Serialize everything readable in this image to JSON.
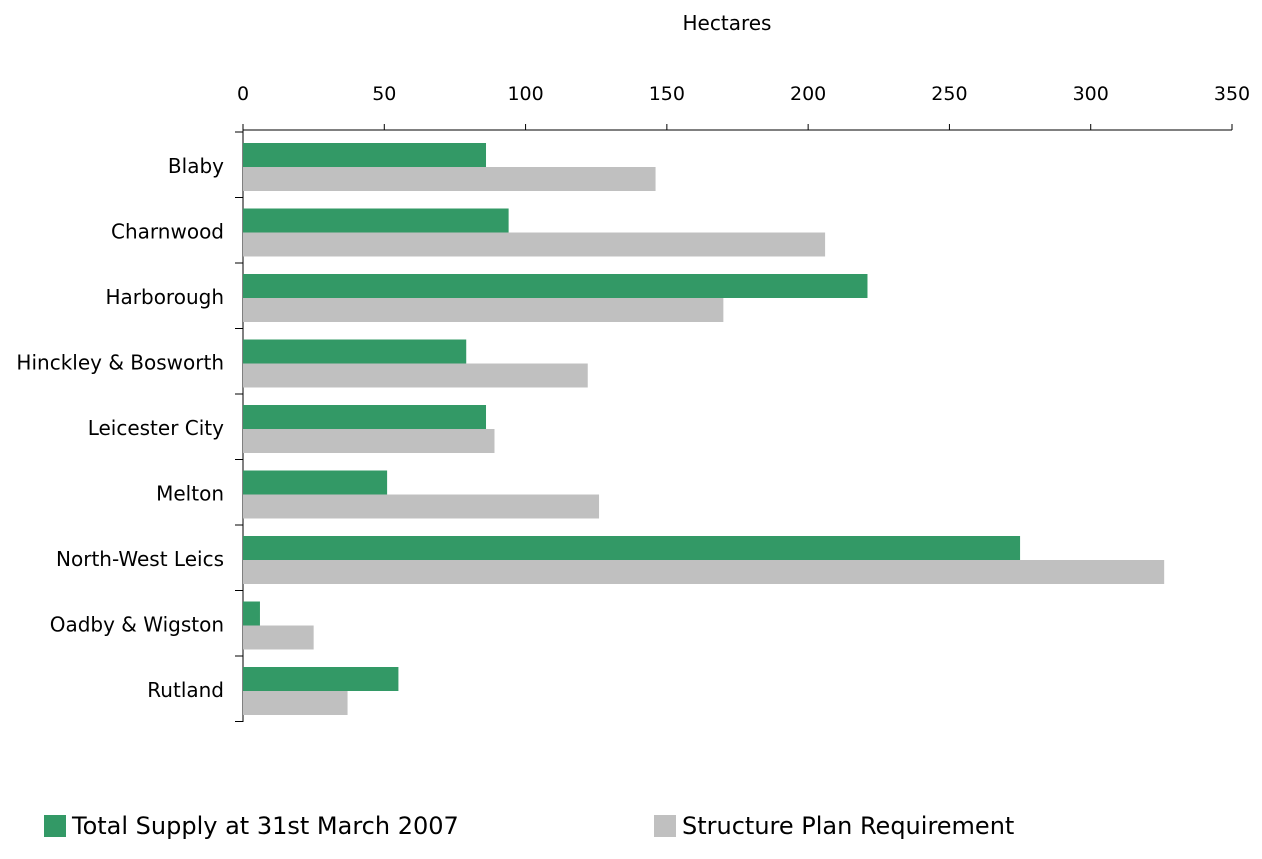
{
  "chart_data": {
    "type": "bar",
    "orientation": "horizontal",
    "xlabel": "Hectares",
    "x_axis_position": "top",
    "xlim": [
      0,
      350
    ],
    "xticks": [
      0,
      50,
      100,
      150,
      200,
      250,
      300,
      350
    ],
    "categories": [
      "Blaby",
      "Charnwood",
      "Harborough",
      "Hinckley & Bosworth",
      "Leicester City",
      "Melton",
      "North-West Leics",
      "Oadby & Wigston",
      "Rutland"
    ],
    "series": [
      {
        "name": "Total Supply at 31st March 2007",
        "color": "#339966",
        "values": [
          86,
          94,
          221,
          79,
          86,
          51,
          275,
          6,
          55
        ]
      },
      {
        "name": "Structure Plan Requirement",
        "color": "#c0c0c0",
        "values": [
          146,
          206,
          170,
          122,
          89,
          126,
          326,
          25,
          37
        ]
      }
    ],
    "grid": false,
    "legend_position": "bottom"
  }
}
